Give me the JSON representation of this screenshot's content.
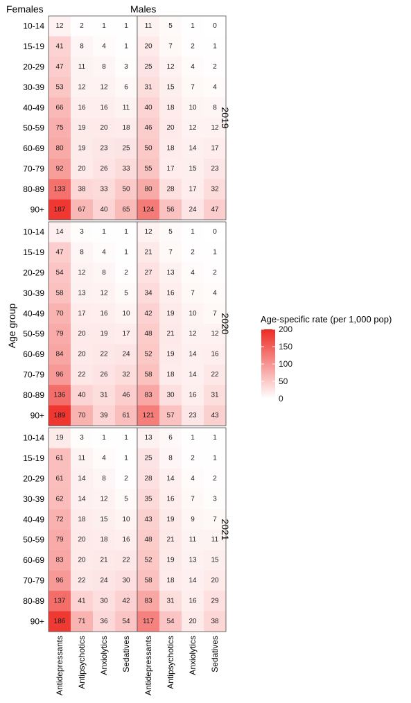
{
  "chart_data": {
    "type": "heatmap",
    "title": "",
    "ylabel": "Age group",
    "xlabel": "",
    "legend": {
      "title": "Age-specific rate (per 1,000 pop)",
      "ticks": [
        200,
        150,
        100,
        50,
        0
      ],
      "range": [
        0,
        200
      ],
      "colors": {
        "low": "#ffffff",
        "high": "#ee2a24"
      },
      "placement": "right"
    },
    "sexes": [
      "Females",
      "Males"
    ],
    "categories": [
      "Antidepressants",
      "Antipsychotics",
      "Anxiolytics",
      "Sedatives"
    ],
    "age_groups": [
      "10-14",
      "15-19",
      "20-29",
      "30-39",
      "40-49",
      "50-59",
      "60-69",
      "70-79",
      "80-89",
      "90+"
    ],
    "years": [
      {
        "year": "2019",
        "Females": [
          [
            12,
            2,
            1,
            1
          ],
          [
            41,
            8,
            4,
            1
          ],
          [
            47,
            11,
            8,
            3
          ],
          [
            53,
            12,
            12,
            6
          ],
          [
            66,
            16,
            16,
            11
          ],
          [
            75,
            19,
            20,
            18
          ],
          [
            80,
            19,
            23,
            25
          ],
          [
            92,
            20,
            26,
            33
          ],
          [
            133,
            38,
            33,
            50
          ],
          [
            187,
            67,
            40,
            65
          ]
        ],
        "Males": [
          [
            11,
            5,
            1,
            0
          ],
          [
            20,
            7,
            2,
            1
          ],
          [
            25,
            12,
            4,
            2
          ],
          [
            31,
            15,
            7,
            4
          ],
          [
            40,
            18,
            10,
            8
          ],
          [
            46,
            20,
            12,
            12
          ],
          [
            50,
            18,
            14,
            17
          ],
          [
            55,
            17,
            15,
            23
          ],
          [
            80,
            28,
            17,
            32
          ],
          [
            124,
            56,
            24,
            47
          ]
        ]
      },
      {
        "year": "2020",
        "Females": [
          [
            14,
            3,
            1,
            1
          ],
          [
            47,
            8,
            4,
            1
          ],
          [
            54,
            12,
            8,
            2
          ],
          [
            58,
            13,
            12,
            5
          ],
          [
            70,
            17,
            16,
            10
          ],
          [
            79,
            20,
            19,
            17
          ],
          [
            84,
            20,
            22,
            24
          ],
          [
            96,
            22,
            26,
            32
          ],
          [
            136,
            40,
            31,
            46
          ],
          [
            189,
            70,
            39,
            61
          ]
        ],
        "Males": [
          [
            12,
            5,
            1,
            0
          ],
          [
            21,
            7,
            2,
            1
          ],
          [
            27,
            13,
            4,
            2
          ],
          [
            34,
            16,
            7,
            4
          ],
          [
            42,
            19,
            10,
            7
          ],
          [
            48,
            21,
            12,
            12
          ],
          [
            52,
            19,
            14,
            16
          ],
          [
            58,
            18,
            14,
            22
          ],
          [
            83,
            30,
            16,
            31
          ],
          [
            121,
            57,
            23,
            43
          ]
        ]
      },
      {
        "year": "2021",
        "Females": [
          [
            19,
            3,
            1,
            1
          ],
          [
            61,
            11,
            4,
            1
          ],
          [
            61,
            14,
            8,
            2
          ],
          [
            62,
            14,
            12,
            5
          ],
          [
            72,
            18,
            15,
            10
          ],
          [
            79,
            20,
            18,
            16
          ],
          [
            83,
            20,
            21,
            22
          ],
          [
            96,
            22,
            24,
            30
          ],
          [
            137,
            41,
            30,
            42
          ],
          [
            186,
            71,
            36,
            54
          ]
        ],
        "Males": [
          [
            13,
            6,
            1,
            1
          ],
          [
            25,
            8,
            2,
            1
          ],
          [
            28,
            14,
            4,
            2
          ],
          [
            35,
            16,
            7,
            3
          ],
          [
            43,
            19,
            9,
            7
          ],
          [
            48,
            21,
            11,
            11
          ],
          [
            52,
            19,
            13,
            15
          ],
          [
            58,
            18,
            14,
            20
          ],
          [
            83,
            31,
            16,
            29
          ],
          [
            117,
            54,
            20,
            38
          ]
        ]
      }
    ]
  }
}
